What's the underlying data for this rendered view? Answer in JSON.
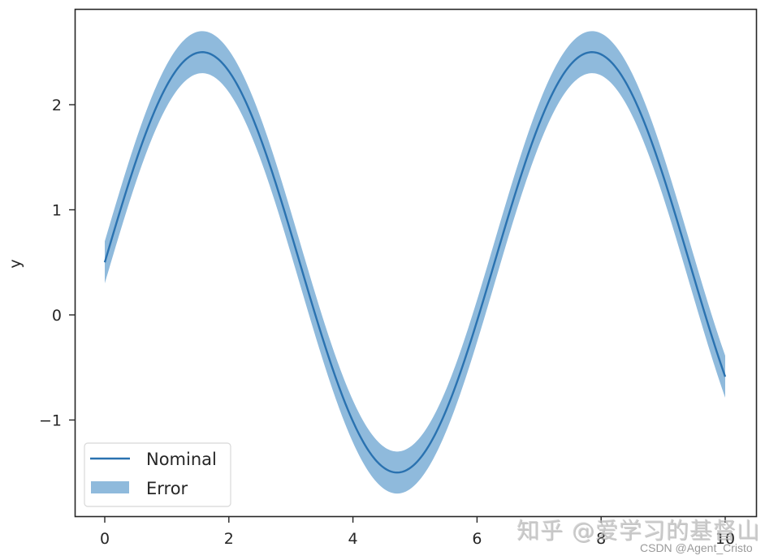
{
  "chart_data": {
    "type": "line",
    "title": "",
    "xlabel": "",
    "ylabel": "y",
    "xlim": [
      -0.5,
      10.5
    ],
    "ylim": [
      -1.9,
      2.9
    ],
    "xticks": [
      0,
      2,
      4,
      6,
      8,
      10
    ],
    "yticks": [
      -1,
      0,
      1,
      2
    ],
    "xtick_labels": [
      "0",
      "2",
      "4",
      "6",
      "8",
      "10"
    ],
    "ytick_labels": [
      "−1",
      "0",
      "1",
      "2"
    ],
    "grid": false,
    "legend": {
      "position": "lower left",
      "entries": [
        "Nominal",
        "Error"
      ]
    },
    "series": [
      {
        "name": "Nominal",
        "kind": "line",
        "color": "#2a72b0",
        "formula": "y = 2*sin(x) + 0.5",
        "x": [
          0,
          0.5,
          1,
          1.5,
          2,
          2.5,
          3,
          3.5,
          4,
          4.5,
          5,
          5.5,
          6,
          6.5,
          7,
          7.5,
          8,
          8.5,
          9,
          9.5,
          10
        ],
        "values": [
          0.5,
          1.46,
          2.18,
          2.5,
          2.32,
          1.7,
          0.78,
          -0.2,
          -1.01,
          -1.46,
          -1.42,
          -0.91,
          -0.06,
          0.93,
          1.81,
          2.38,
          2.48,
          2.1,
          1.32,
          0.35,
          -0.59
        ]
      },
      {
        "name": "Error",
        "kind": "band",
        "color": "#8fbadc",
        "half_width": 0.2
      }
    ]
  },
  "axes": {
    "ylabel": "y"
  },
  "legend": {
    "items": [
      {
        "label": "Nominal"
      },
      {
        "label": "Error"
      }
    ]
  },
  "watermarks": {
    "zhihu": "知乎 @爱学习的基督山",
    "csdn": "CSDN @Agent_Cristo"
  }
}
